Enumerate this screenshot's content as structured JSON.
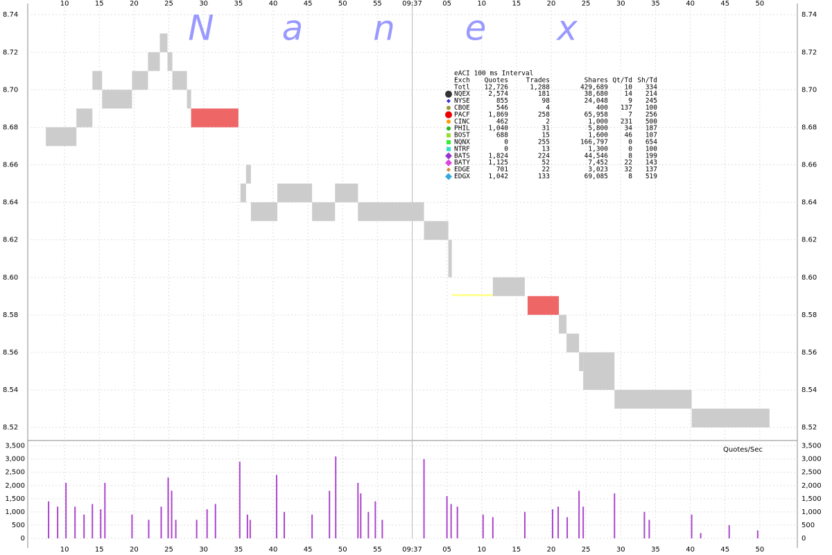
{
  "chart_data": [
    {
      "type": "spread",
      "watermark": [
        "N",
        "a",
        "n",
        "e",
        "x"
      ],
      "xlim": [
        4.7,
        115.4
      ],
      "ylim": [
        8.513,
        8.746
      ],
      "xticks": [
        10,
        15,
        20,
        25,
        30,
        35,
        40,
        45,
        50,
        55,
        {
          "value": 60,
          "label": "09:37"
        },
        {
          "value": 65,
          "label": "05"
        },
        {
          "value": 70,
          "label": "10"
        },
        {
          "value": 75,
          "label": "15"
        },
        {
          "value": 80,
          "label": "20"
        },
        {
          "value": 85,
          "label": "25"
        },
        {
          "value": 90,
          "label": "30"
        },
        {
          "value": 95,
          "label": "35"
        },
        {
          "value": 100,
          "label": "40"
        },
        {
          "value": 105,
          "label": "45"
        },
        {
          "value": 110,
          "label": "50"
        }
      ],
      "yticks": [
        8.52,
        8.54,
        8.56,
        8.58,
        {
          "value": 8.6,
          "label": "8.60"
        },
        8.62,
        8.64,
        8.66,
        8.68,
        {
          "value": 8.7,
          "label": "8.70"
        },
        8.72,
        8.74
      ],
      "grid": true,
      "segments": [
        {
          "start": 7.3,
          "end": 11.7,
          "bid": 8.67,
          "ask": 8.68,
          "color": "#cccccc"
        },
        {
          "start": 11.7,
          "end": 14.0,
          "bid": 8.68,
          "ask": 8.69,
          "color": "#cccccc"
        },
        {
          "start": 14.0,
          "end": 15.4,
          "bid": 8.7,
          "ask": 8.71,
          "color": "#cccccc"
        },
        {
          "start": 15.4,
          "end": 19.7,
          "bid": 8.69,
          "ask": 8.7,
          "color": "#cccccc"
        },
        {
          "start": 19.7,
          "end": 22.0,
          "bid": 8.7,
          "ask": 8.71,
          "color": "#cccccc"
        },
        {
          "start": 22.0,
          "end": 23.7,
          "bid": 8.71,
          "ask": 8.72,
          "color": "#cccccc"
        },
        {
          "start": 23.7,
          "end": 24.8,
          "bid": 8.72,
          "ask": 8.73,
          "color": "#cccccc"
        },
        {
          "start": 24.8,
          "end": 25.5,
          "bid": 8.71,
          "ask": 8.72,
          "color": "#cccccc"
        },
        {
          "start": 25.5,
          "end": 27.6,
          "bid": 8.7,
          "ask": 8.71,
          "color": "#cccccc"
        },
        {
          "start": 27.6,
          "end": 28.2,
          "bid": 8.69,
          "ask": 8.7,
          "color": "#cccccc"
        },
        {
          "start": 28.2,
          "end": 35.0,
          "bid": 8.68,
          "ask": 8.69,
          "color": "#ee6666"
        },
        {
          "start": 35.3,
          "end": 36.1,
          "bid": 8.64,
          "ask": 8.65,
          "color": "#cccccc"
        },
        {
          "start": 36.1,
          "end": 36.8,
          "bid": 8.65,
          "ask": 8.66,
          "color": "#cccccc"
        },
        {
          "start": 36.8,
          "end": 40.6,
          "bid": 8.63,
          "ask": 8.64,
          "color": "#cccccc"
        },
        {
          "start": 40.6,
          "end": 45.6,
          "bid": 8.64,
          "ask": 8.65,
          "color": "#cccccc"
        },
        {
          "start": 45.6,
          "end": 48.9,
          "bid": 8.63,
          "ask": 8.64,
          "color": "#cccccc"
        },
        {
          "start": 48.9,
          "end": 52.2,
          "bid": 8.64,
          "ask": 8.65,
          "color": "#cccccc"
        },
        {
          "start": 52.2,
          "end": 61.7,
          "bid": 8.63,
          "ask": 8.64,
          "color": "#cccccc"
        },
        {
          "start": 61.7,
          "end": 65.2,
          "bid": 8.62,
          "ask": 8.63,
          "color": "#cccccc"
        },
        {
          "start": 65.2,
          "end": 65.7,
          "bid": 8.6,
          "ask": 8.62,
          "color": "#cccccc"
        },
        {
          "start": 65.7,
          "end": 71.6,
          "bid": 8.59,
          "ask": 8.591,
          "color": "#ffff88"
        },
        {
          "start": 71.6,
          "end": 76.2,
          "bid": 8.59,
          "ask": 8.6,
          "color": "#cccccc"
        },
        {
          "start": 76.6,
          "end": 81.1,
          "bid": 8.58,
          "ask": 8.59,
          "color": "#ee6666"
        },
        {
          "start": 81.1,
          "end": 82.2,
          "bid": 8.57,
          "ask": 8.58,
          "color": "#cccccc"
        },
        {
          "start": 82.2,
          "end": 84.0,
          "bid": 8.56,
          "ask": 8.57,
          "color": "#cccccc"
        },
        {
          "start": 84.0,
          "end": 84.6,
          "bid": 8.55,
          "ask": 8.56,
          "color": "#cccccc"
        },
        {
          "start": 84.6,
          "end": 89.1,
          "bid": 8.54,
          "ask": 8.56,
          "color": "#cccccc"
        },
        {
          "start": 89.1,
          "end": 100.2,
          "bid": 8.53,
          "ask": 8.54,
          "color": "#cccccc"
        },
        {
          "start": 100.2,
          "end": 111.4,
          "bid": 8.52,
          "ask": 8.53,
          "color": "#cccccc"
        }
      ]
    },
    {
      "type": "bar",
      "label": "Quotes/Sec",
      "color": "#aa44cc",
      "xlim": [
        4.7,
        115.4
      ],
      "ylim": [
        0,
        3700
      ],
      "yticks": [
        0,
        500,
        {
          "value": 1000,
          "label": "1,000"
        },
        {
          "value": 1500,
          "label": "1,500"
        },
        {
          "value": 2000,
          "label": "2,000"
        },
        {
          "value": 2500,
          "label": "2,500"
        },
        {
          "value": 3000,
          "label": "3,000"
        },
        {
          "value": 3500,
          "label": "3,500"
        }
      ],
      "x": [
        7.7,
        9.0,
        10.2,
        11.5,
        12.8,
        14.0,
        15.2,
        15.8,
        19.7,
        22.1,
        23.9,
        24.9,
        25.4,
        26.0,
        29.0,
        30.5,
        31.7,
        35.2,
        36.3,
        36.7,
        40.5,
        41.6,
        45.6,
        48.1,
        49.0,
        52.2,
        52.6,
        53.7,
        54.7,
        55.7,
        61.7,
        65.0,
        65.6,
        66.5,
        70.2,
        71.6,
        76.2,
        80.2,
        81.0,
        82.3,
        84.0,
        84.6,
        89.1,
        93.4,
        94.1,
        100.2,
        101.5,
        105.6,
        109.7
      ],
      "values": [
        1400,
        1200,
        2100,
        1200,
        900,
        1300,
        1100,
        2100,
        900,
        700,
        1200,
        2300,
        1800,
        700,
        700,
        1100,
        1300,
        2900,
        900,
        700,
        2400,
        1000,
        900,
        1800,
        3100,
        2100,
        1700,
        1000,
        1400,
        700,
        3000,
        1600,
        1300,
        1200,
        900,
        800,
        1000,
        1100,
        1200,
        800,
        1800,
        1200,
        1700,
        1000,
        700,
        900,
        200,
        500,
        300
      ]
    }
  ],
  "stats": {
    "title": "eACI 100 ms Interval",
    "columns": [
      "Exch",
      "Quotes",
      "Trades",
      "Shares",
      "Qt/Td",
      "Sh/Td"
    ],
    "rows": [
      {
        "cells": [
          "Totl",
          "12,726",
          "1,288",
          "429,689",
          "10",
          "334"
        ]
      },
      {
        "cells": [
          "NQEX",
          "2,574",
          "181",
          "38,680",
          "14",
          "214"
        ],
        "color": "#333333",
        "shape": "circle-big"
      },
      {
        "cells": [
          "NYSE",
          "855",
          "98",
          "24,048",
          "9",
          "245"
        ],
        "color": "#3333cc",
        "shape": "diamond"
      },
      {
        "cells": [
          "CBOE",
          "546",
          "4",
          "400",
          "137",
          "100"
        ],
        "color": "#999933",
        "shape": "circle"
      },
      {
        "cells": [
          "PACF",
          "1,869",
          "258",
          "65,958",
          "7",
          "256"
        ],
        "color": "#ee0000",
        "shape": "circle-big"
      },
      {
        "cells": [
          "CINC",
          "462",
          "2",
          "1,000",
          "231",
          "500"
        ],
        "color": "#ff9900",
        "shape": "circle"
      },
      {
        "cells": [
          "PHIL",
          "1,040",
          "31",
          "5,800",
          "34",
          "187"
        ],
        "color": "#22bb22",
        "shape": "circle"
      },
      {
        "cells": [
          "BOST",
          "688",
          "15",
          "1,600",
          "46",
          "107"
        ],
        "color": "#99dd33",
        "shape": "square"
      },
      {
        "cells": [
          "NQNX",
          "0",
          "255",
          "166,797",
          "0",
          "654"
        ],
        "color": "#33ee33",
        "shape": "square"
      },
      {
        "cells": [
          "NTRF",
          "0",
          "13",
          "1,300",
          "0",
          "100"
        ],
        "color": "#33ddcc",
        "shape": "square"
      },
      {
        "cells": [
          "BATS",
          "1,824",
          "224",
          "44,546",
          "8",
          "199"
        ],
        "color": "#9933cc",
        "shape": "diamond-big"
      },
      {
        "cells": [
          "BATY",
          "1,125",
          "52",
          "7,452",
          "22",
          "143"
        ],
        "color": "#dd44dd",
        "shape": "diamond-big"
      },
      {
        "cells": [
          "EDGE",
          "701",
          "22",
          "3,023",
          "32",
          "137"
        ],
        "color": "#cc8833",
        "shape": "diamond"
      },
      {
        "cells": [
          "EDGX",
          "1,042",
          "133",
          "69,085",
          "8",
          "519"
        ],
        "color": "#33aadd",
        "shape": "diamond-big"
      }
    ]
  }
}
